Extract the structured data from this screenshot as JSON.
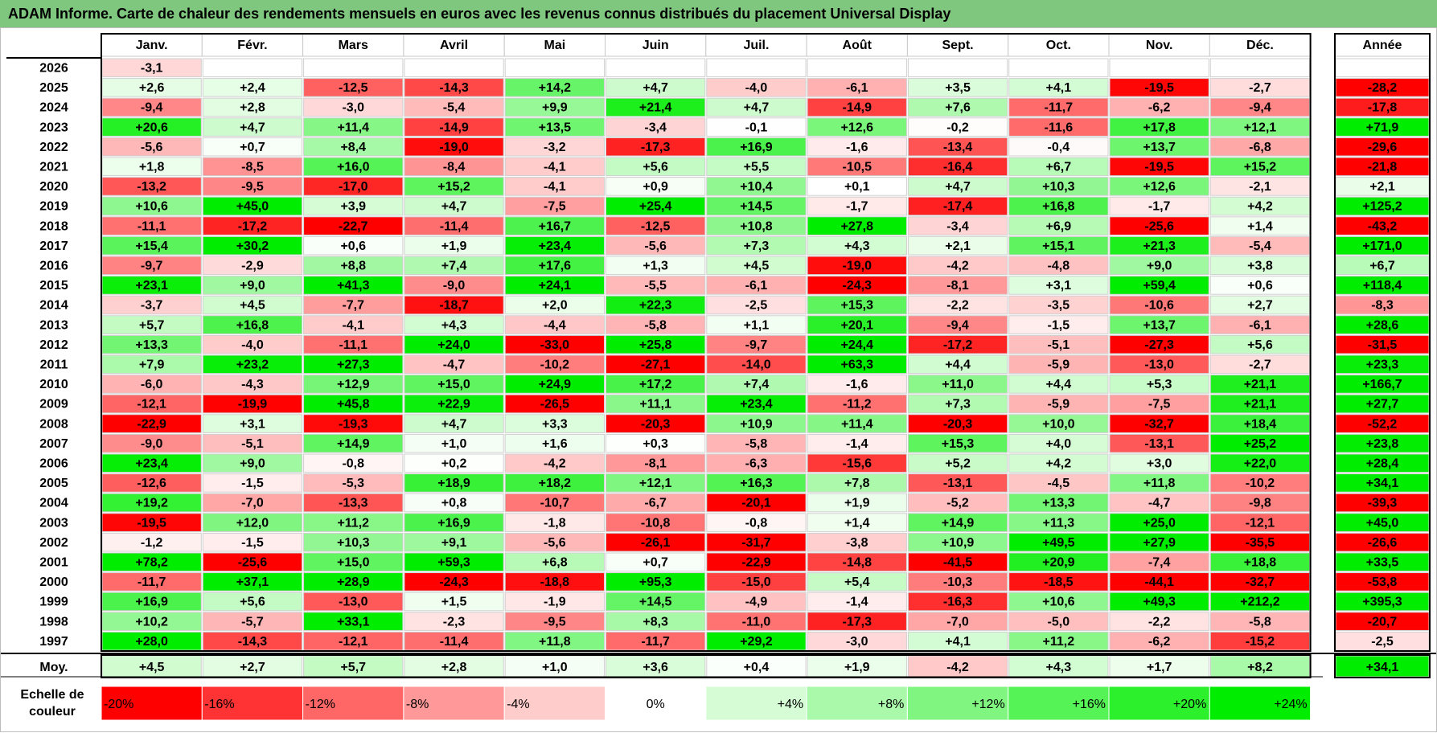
{
  "title": "ADAM Informe. Carte de chaleur des rendements mensuels en euros avec les revenus connus distribués du placement Universal Display",
  "chart_data": {
    "type": "heatmap",
    "title": "ADAM Informe. Carte de chaleur des rendements mensuels en euros avec les revenus connus distribués du placement Universal Display",
    "columns": [
      "Janv.",
      "Févr.",
      "Mars",
      "Avril",
      "Mai",
      "Juin",
      "Juil.",
      "Août",
      "Sept.",
      "Oct.",
      "Nov.",
      "Déc."
    ],
    "annual_header": "Année",
    "rows": [
      {
        "year": "2026",
        "values": [
          "-3,1",
          null,
          null,
          null,
          null,
          null,
          null,
          null,
          null,
          null,
          null,
          null
        ],
        "annual": null
      },
      {
        "year": "2025",
        "values": [
          "+2,6",
          "+2,4",
          "-12,5",
          "-14,3",
          "+14,2",
          "+4,7",
          "-4,0",
          "-6,1",
          "+3,5",
          "+4,1",
          "-19,5",
          "-2,7"
        ],
        "annual": "-28,2"
      },
      {
        "year": "2024",
        "values": [
          "-9,4",
          "+2,8",
          "-3,0",
          "-5,4",
          "+9,9",
          "+21,4",
          "+4,7",
          "-14,9",
          "+7,6",
          "-11,7",
          "-6,2",
          "-9,4"
        ],
        "annual": "-17,8"
      },
      {
        "year": "2023",
        "values": [
          "+20,6",
          "+4,7",
          "+11,4",
          "-14,9",
          "+13,5",
          "-3,4",
          "-0,1",
          "+12,6",
          "-0,2",
          "-11,6",
          "+17,8",
          "+12,1"
        ],
        "annual": "+71,9"
      },
      {
        "year": "2022",
        "values": [
          "-5,6",
          "+0,7",
          "+8,4",
          "-19,0",
          "-3,2",
          "-17,3",
          "+16,9",
          "-1,6",
          "-13,4",
          "-0,4",
          "+13,7",
          "-6,8"
        ],
        "annual": "-29,6"
      },
      {
        "year": "2021",
        "values": [
          "+1,8",
          "-8,5",
          "+16,0",
          "-8,4",
          "-4,1",
          "+5,6",
          "+5,5",
          "-10,5",
          "-16,4",
          "+6,7",
          "-19,5",
          "+15,2"
        ],
        "annual": "-21,8"
      },
      {
        "year": "2020",
        "values": [
          "-13,2",
          "-9,5",
          "-17,0",
          "+15,2",
          "-4,1",
          "+0,9",
          "+10,4",
          "+0,1",
          "+4,7",
          "+10,3",
          "+12,6",
          "-2,1"
        ],
        "annual": "+2,1"
      },
      {
        "year": "2019",
        "values": [
          "+10,6",
          "+45,0",
          "+3,9",
          "+4,7",
          "-7,5",
          "+25,4",
          "+14,5",
          "-1,7",
          "-17,4",
          "+16,8",
          "-1,7",
          "+4,2"
        ],
        "annual": "+125,2"
      },
      {
        "year": "2018",
        "values": [
          "-11,1",
          "-17,2",
          "-22,7",
          "-11,4",
          "+16,7",
          "-12,5",
          "+10,8",
          "+27,8",
          "-3,4",
          "+6,9",
          "-25,6",
          "+1,4"
        ],
        "annual": "-43,2"
      },
      {
        "year": "2017",
        "values": [
          "+15,4",
          "+30,2",
          "+0,6",
          "+1,9",
          "+23,4",
          "-5,6",
          "+7,3",
          "+4,3",
          "+2,1",
          "+15,1",
          "+21,3",
          "-5,4"
        ],
        "annual": "+171,0"
      },
      {
        "year": "2016",
        "values": [
          "-9,7",
          "-2,9",
          "+8,8",
          "+7,4",
          "+17,6",
          "+1,3",
          "+4,5",
          "-19,0",
          "-4,2",
          "-4,8",
          "+9,0",
          "+3,8"
        ],
        "annual": "+6,7"
      },
      {
        "year": "2015",
        "values": [
          "+23,1",
          "+9,0",
          "+41,3",
          "-9,0",
          "+24,1",
          "-5,5",
          "-6,1",
          "-24,3",
          "-8,1",
          "+3,1",
          "+59,4",
          "+0,6"
        ],
        "annual": "+118,4"
      },
      {
        "year": "2014",
        "values": [
          "-3,7",
          "+4,5",
          "-7,7",
          "-18,7",
          "+2,0",
          "+22,3",
          "-2,5",
          "+15,3",
          "-2,2",
          "-3,5",
          "-10,6",
          "+2,7"
        ],
        "annual": "-8,3"
      },
      {
        "year": "2013",
        "values": [
          "+5,7",
          "+16,8",
          "-4,1",
          "+4,3",
          "-4,4",
          "-5,8",
          "+1,1",
          "+20,1",
          "-9,4",
          "-1,5",
          "+13,7",
          "-6,1"
        ],
        "annual": "+28,6"
      },
      {
        "year": "2012",
        "values": [
          "+13,3",
          "-4,0",
          "-11,1",
          "+24,0",
          "-33,0",
          "+25,8",
          "-9,7",
          "+24,4",
          "-17,2",
          "-5,1",
          "-27,3",
          "+5,6"
        ],
        "annual": "-31,5"
      },
      {
        "year": "2011",
        "values": [
          "+7,9",
          "+23,2",
          "+27,3",
          "-4,7",
          "-10,2",
          "-27,1",
          "-14,0",
          "+63,3",
          "+4,4",
          "-5,9",
          "-13,0",
          "-2,7"
        ],
        "annual": "+23,3"
      },
      {
        "year": "2010",
        "values": [
          "-6,0",
          "-4,3",
          "+12,9",
          "+15,0",
          "+24,9",
          "+17,2",
          "+7,4",
          "-1,6",
          "+11,0",
          "+4,4",
          "+5,3",
          "+21,1"
        ],
        "annual": "+166,7"
      },
      {
        "year": "2009",
        "values": [
          "-12,1",
          "-19,9",
          "+45,8",
          "+22,9",
          "-26,5",
          "+11,1",
          "+23,4",
          "-11,2",
          "+7,3",
          "-5,9",
          "-7,5",
          "+21,1"
        ],
        "annual": "+27,7"
      },
      {
        "year": "2008",
        "values": [
          "-22,9",
          "+3,1",
          "-19,3",
          "+4,7",
          "+3,3",
          "-20,3",
          "+10,9",
          "+11,4",
          "-20,3",
          "+10,0",
          "-32,7",
          "+18,4"
        ],
        "annual": "-52,2"
      },
      {
        "year": "2007",
        "values": [
          "-9,0",
          "-5,1",
          "+14,9",
          "+1,0",
          "+1,6",
          "+0,3",
          "-5,8",
          "-1,4",
          "+15,3",
          "+4,0",
          "-13,1",
          "+25,2"
        ],
        "annual": "+23,8"
      },
      {
        "year": "2006",
        "values": [
          "+23,4",
          "+9,0",
          "-0,8",
          "+0,2",
          "-4,2",
          "-8,1",
          "-6,3",
          "-15,6",
          "+5,2",
          "+4,2",
          "+3,0",
          "+22,0"
        ],
        "annual": "+28,4"
      },
      {
        "year": "2005",
        "values": [
          "-12,6",
          "-1,5",
          "-5,3",
          "+18,9",
          "+18,2",
          "+12,1",
          "+16,3",
          "+7,8",
          "-13,1",
          "-4,5",
          "+11,8",
          "-10,2"
        ],
        "annual": "+34,1"
      },
      {
        "year": "2004",
        "values": [
          "+19,2",
          "-7,0",
          "-13,3",
          "+0,8",
          "-10,7",
          "-6,7",
          "-20,1",
          "+1,9",
          "-5,2",
          "+13,3",
          "-4,7",
          "-9,8"
        ],
        "annual": "-39,3"
      },
      {
        "year": "2003",
        "values": [
          "-19,5",
          "+12,0",
          "+11,2",
          "+16,9",
          "-1,8",
          "-10,8",
          "-0,8",
          "+1,4",
          "+14,9",
          "+11,3",
          "+25,0",
          "-12,1"
        ],
        "annual": "+45,0"
      },
      {
        "year": "2002",
        "values": [
          "-1,2",
          "-1,5",
          "+10,3",
          "+9,1",
          "-5,6",
          "-26,1",
          "-31,7",
          "-3,8",
          "+10,9",
          "+49,5",
          "+27,9",
          "-35,5"
        ],
        "annual": "-26,6"
      },
      {
        "year": "2001",
        "values": [
          "+78,2",
          "-25,6",
          "+15,0",
          "+59,3",
          "+6,8",
          "+0,7",
          "-22,9",
          "-14,8",
          "-41,5",
          "+20,9",
          "-7,4",
          "+18,8"
        ],
        "annual": "+33,5"
      },
      {
        "year": "2000",
        "values": [
          "-11,7",
          "+37,1",
          "+28,9",
          "-24,3",
          "-18,8",
          "+95,3",
          "-15,0",
          "+5,4",
          "-10,3",
          "-18,5",
          "-44,1",
          "-32,7"
        ],
        "annual": "-53,8"
      },
      {
        "year": "1999",
        "values": [
          "+16,9",
          "+5,6",
          "-13,0",
          "+1,5",
          "-1,9",
          "+14,5",
          "-4,9",
          "-1,4",
          "-16,3",
          "+10,6",
          "+49,3",
          "+212,2"
        ],
        "annual": "+395,3"
      },
      {
        "year": "1998",
        "values": [
          "+10,2",
          "-5,7",
          "+33,1",
          "-2,3",
          "-9,5",
          "+8,3",
          "-11,0",
          "-17,3",
          "-7,0",
          "-5,0",
          "-2,2",
          "-5,8"
        ],
        "annual": "-20,7"
      },
      {
        "year": "1997",
        "values": [
          "+28,0",
          "-14,3",
          "-12,1",
          "-11,4",
          "+11,8",
          "-11,7",
          "+29,2",
          "-3,0",
          "+4,1",
          "+11,2",
          "-6,2",
          "-15,2"
        ],
        "annual": "-2,5"
      }
    ],
    "average": {
      "label": "Moy.",
      "values": [
        "+4,5",
        "+2,7",
        "+5,7",
        "+2,8",
        "+1,0",
        "+3,6",
        "+0,4",
        "+1,9",
        "-4,2",
        "+4,3",
        "+1,7",
        "+8,2"
      ],
      "annual": "+34,1"
    },
    "color_scale": {
      "label": "Echelle de couleur",
      "stops": [
        {
          "label": "-20%",
          "value": -20,
          "color": "#ff0000"
        },
        {
          "label": "-16%",
          "value": -16,
          "color": "#ff3333"
        },
        {
          "label": "-12%",
          "value": -12,
          "color": "#ff6666"
        },
        {
          "label": "-8%",
          "value": -8,
          "color": "#ff9999"
        },
        {
          "label": "-4%",
          "value": -4,
          "color": "#ffcccc"
        },
        {
          "label": "0%",
          "value": 0,
          "color": "#ffffff"
        },
        {
          "label": "+4%",
          "value": 4,
          "color": "#d5fcd5"
        },
        {
          "label": "+8%",
          "value": 8,
          "color": "#aaf9aa"
        },
        {
          "label": "+12%",
          "value": 12,
          "color": "#80f680"
        },
        {
          "label": "+16%",
          "value": 16,
          "color": "#55f355"
        },
        {
          "label": "+20%",
          "value": 20,
          "color": "#2bf02b"
        },
        {
          "label": "+24%",
          "value": 24,
          "color": "#00ed00"
        }
      ]
    }
  }
}
